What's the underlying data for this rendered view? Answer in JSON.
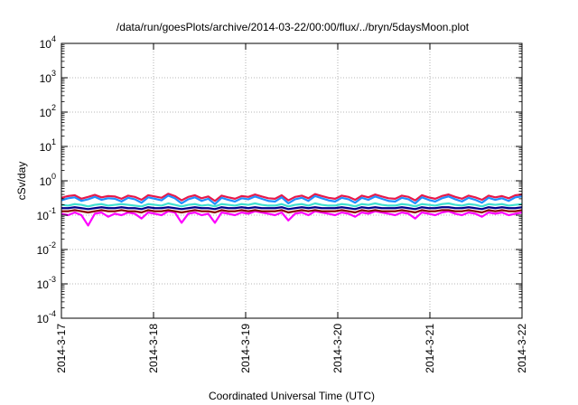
{
  "chart_data": {
    "type": "line",
    "title": "/data/run/goesPlots/archive/2014-03-22/00:00/flux/../bryn/5daysMoon.plot",
    "xlabel": "Coordinated Universal Time (UTC)",
    "ylabel": "cSv/day",
    "y_scale": "log",
    "ylim": [
      0.0001,
      10000
    ],
    "y_ticks": [
      {
        "base": "10",
        "exp": "-4"
      },
      {
        "base": "10",
        "exp": "-3"
      },
      {
        "base": "10",
        "exp": "-2"
      },
      {
        "base": "10",
        "exp": "-1"
      },
      {
        "base": "10",
        "exp": "0"
      },
      {
        "base": "10",
        "exp": "1"
      },
      {
        "base": "10",
        "exp": "2"
      },
      {
        "base": "10",
        "exp": "3"
      },
      {
        "base": "10",
        "exp": "4"
      }
    ],
    "x_ticks": [
      "2014-3-17",
      "2014-3-18",
      "2014-3-19",
      "2014-3-20",
      "2014-3-21",
      "2014-3-22"
    ],
    "xlim": [
      "2014-3-17",
      "2014-3-22"
    ],
    "grid": true,
    "series": [
      {
        "color": "#ff00ff",
        "values": [
          0.11,
          0.1,
          0.12,
          0.1,
          0.05,
          0.11,
          0.12,
          0.09,
          0.11,
          0.1,
          0.12,
          0.11,
          0.08,
          0.12,
          0.11,
          0.1,
          0.13,
          0.12,
          0.06,
          0.11,
          0.12,
          0.1,
          0.11,
          0.06,
          0.12,
          0.11,
          0.1,
          0.12,
          0.11,
          0.13,
          0.12,
          0.11,
          0.1,
          0.12,
          0.07,
          0.11,
          0.12,
          0.1,
          0.13,
          0.12,
          0.11,
          0.1,
          0.12,
          0.11,
          0.09,
          0.12,
          0.11,
          0.13,
          0.12,
          0.11,
          0.1,
          0.12,
          0.11,
          0.08,
          0.12,
          0.11,
          0.1,
          0.12,
          0.13,
          0.11,
          0.1,
          0.12,
          0.11,
          0.09,
          0.12,
          0.11,
          0.12,
          0.1,
          0.11,
          0.12
        ]
      },
      {
        "color": "#8b0000",
        "values": [
          0.13,
          0.13,
          0.14,
          0.13,
          0.12,
          0.13,
          0.14,
          0.13,
          0.13,
          0.14,
          0.13,
          0.13,
          0.12,
          0.14,
          0.13,
          0.13,
          0.14,
          0.13,
          0.12,
          0.13,
          0.14,
          0.13,
          0.13,
          0.12,
          0.14,
          0.13,
          0.13,
          0.14,
          0.13,
          0.14,
          0.13,
          0.13,
          0.13,
          0.14,
          0.12,
          0.13,
          0.14,
          0.13,
          0.14,
          0.13,
          0.13,
          0.13,
          0.14,
          0.13,
          0.12,
          0.14,
          0.13,
          0.14,
          0.13,
          0.13,
          0.13,
          0.14,
          0.13,
          0.12,
          0.14,
          0.13,
          0.13,
          0.14,
          0.14,
          0.13,
          0.13,
          0.14,
          0.13,
          0.12,
          0.14,
          0.13,
          0.14,
          0.13,
          0.13,
          0.14
        ]
      },
      {
        "color": "#00008b",
        "values": [
          0.16,
          0.16,
          0.17,
          0.16,
          0.15,
          0.16,
          0.17,
          0.16,
          0.16,
          0.17,
          0.16,
          0.16,
          0.15,
          0.17,
          0.16,
          0.16,
          0.17,
          0.16,
          0.15,
          0.16,
          0.17,
          0.16,
          0.16,
          0.15,
          0.17,
          0.16,
          0.16,
          0.17,
          0.16,
          0.17,
          0.16,
          0.16,
          0.16,
          0.17,
          0.15,
          0.16,
          0.17,
          0.16,
          0.17,
          0.16,
          0.16,
          0.16,
          0.17,
          0.16,
          0.15,
          0.17,
          0.16,
          0.17,
          0.16,
          0.16,
          0.16,
          0.17,
          0.16,
          0.15,
          0.17,
          0.16,
          0.16,
          0.17,
          0.17,
          0.16,
          0.16,
          0.17,
          0.16,
          0.15,
          0.17,
          0.16,
          0.17,
          0.16,
          0.16,
          0.17
        ]
      },
      {
        "color": "#40e0d0",
        "values": [
          0.2,
          0.19,
          0.21,
          0.2,
          0.18,
          0.2,
          0.21,
          0.19,
          0.2,
          0.21,
          0.2,
          0.19,
          0.18,
          0.21,
          0.2,
          0.19,
          0.22,
          0.2,
          0.18,
          0.2,
          0.21,
          0.19,
          0.2,
          0.18,
          0.21,
          0.2,
          0.19,
          0.21,
          0.2,
          0.22,
          0.2,
          0.19,
          0.19,
          0.21,
          0.18,
          0.2,
          0.21,
          0.19,
          0.22,
          0.2,
          0.19,
          0.19,
          0.21,
          0.2,
          0.18,
          0.21,
          0.2,
          0.22,
          0.2,
          0.19,
          0.19,
          0.21,
          0.2,
          0.18,
          0.21,
          0.2,
          0.19,
          0.21,
          0.22,
          0.2,
          0.19,
          0.21,
          0.2,
          0.18,
          0.21,
          0.2,
          0.21,
          0.19,
          0.2,
          0.21
        ]
      },
      {
        "color": "#e6194b",
        "values": [
          0.32,
          0.36,
          0.38,
          0.3,
          0.34,
          0.39,
          0.33,
          0.36,
          0.35,
          0.3,
          0.37,
          0.34,
          0.28,
          0.38,
          0.35,
          0.32,
          0.42,
          0.36,
          0.27,
          0.34,
          0.38,
          0.31,
          0.35,
          0.26,
          0.37,
          0.33,
          0.3,
          0.36,
          0.34,
          0.4,
          0.35,
          0.31,
          0.3,
          0.38,
          0.27,
          0.34,
          0.37,
          0.31,
          0.41,
          0.36,
          0.32,
          0.3,
          0.37,
          0.34,
          0.28,
          0.37,
          0.33,
          0.4,
          0.35,
          0.31,
          0.3,
          0.37,
          0.34,
          0.27,
          0.38,
          0.33,
          0.3,
          0.36,
          0.4,
          0.34,
          0.3,
          0.37,
          0.33,
          0.28,
          0.37,
          0.33,
          0.36,
          0.31,
          0.38,
          0.4
        ]
      },
      {
        "color": "#1e90ff",
        "values": [
          0.27,
          0.31,
          0.33,
          0.26,
          0.29,
          0.34,
          0.28,
          0.31,
          0.3,
          0.25,
          0.32,
          0.29,
          0.23,
          0.33,
          0.3,
          0.27,
          0.37,
          0.31,
          0.22,
          0.29,
          0.33,
          0.26,
          0.3,
          0.21,
          0.32,
          0.28,
          0.25,
          0.31,
          0.29,
          0.35,
          0.3,
          0.26,
          0.25,
          0.33,
          0.22,
          0.29,
          0.32,
          0.26,
          0.36,
          0.31,
          0.27,
          0.25,
          0.32,
          0.29,
          0.23,
          0.32,
          0.28,
          0.35,
          0.3,
          0.26,
          0.25,
          0.32,
          0.29,
          0.22,
          0.33,
          0.28,
          0.25,
          0.31,
          0.35,
          0.29,
          0.25,
          0.32,
          0.28,
          0.23,
          0.32,
          0.28,
          0.31,
          0.26,
          0.33,
          0.35
        ]
      }
    ]
  }
}
